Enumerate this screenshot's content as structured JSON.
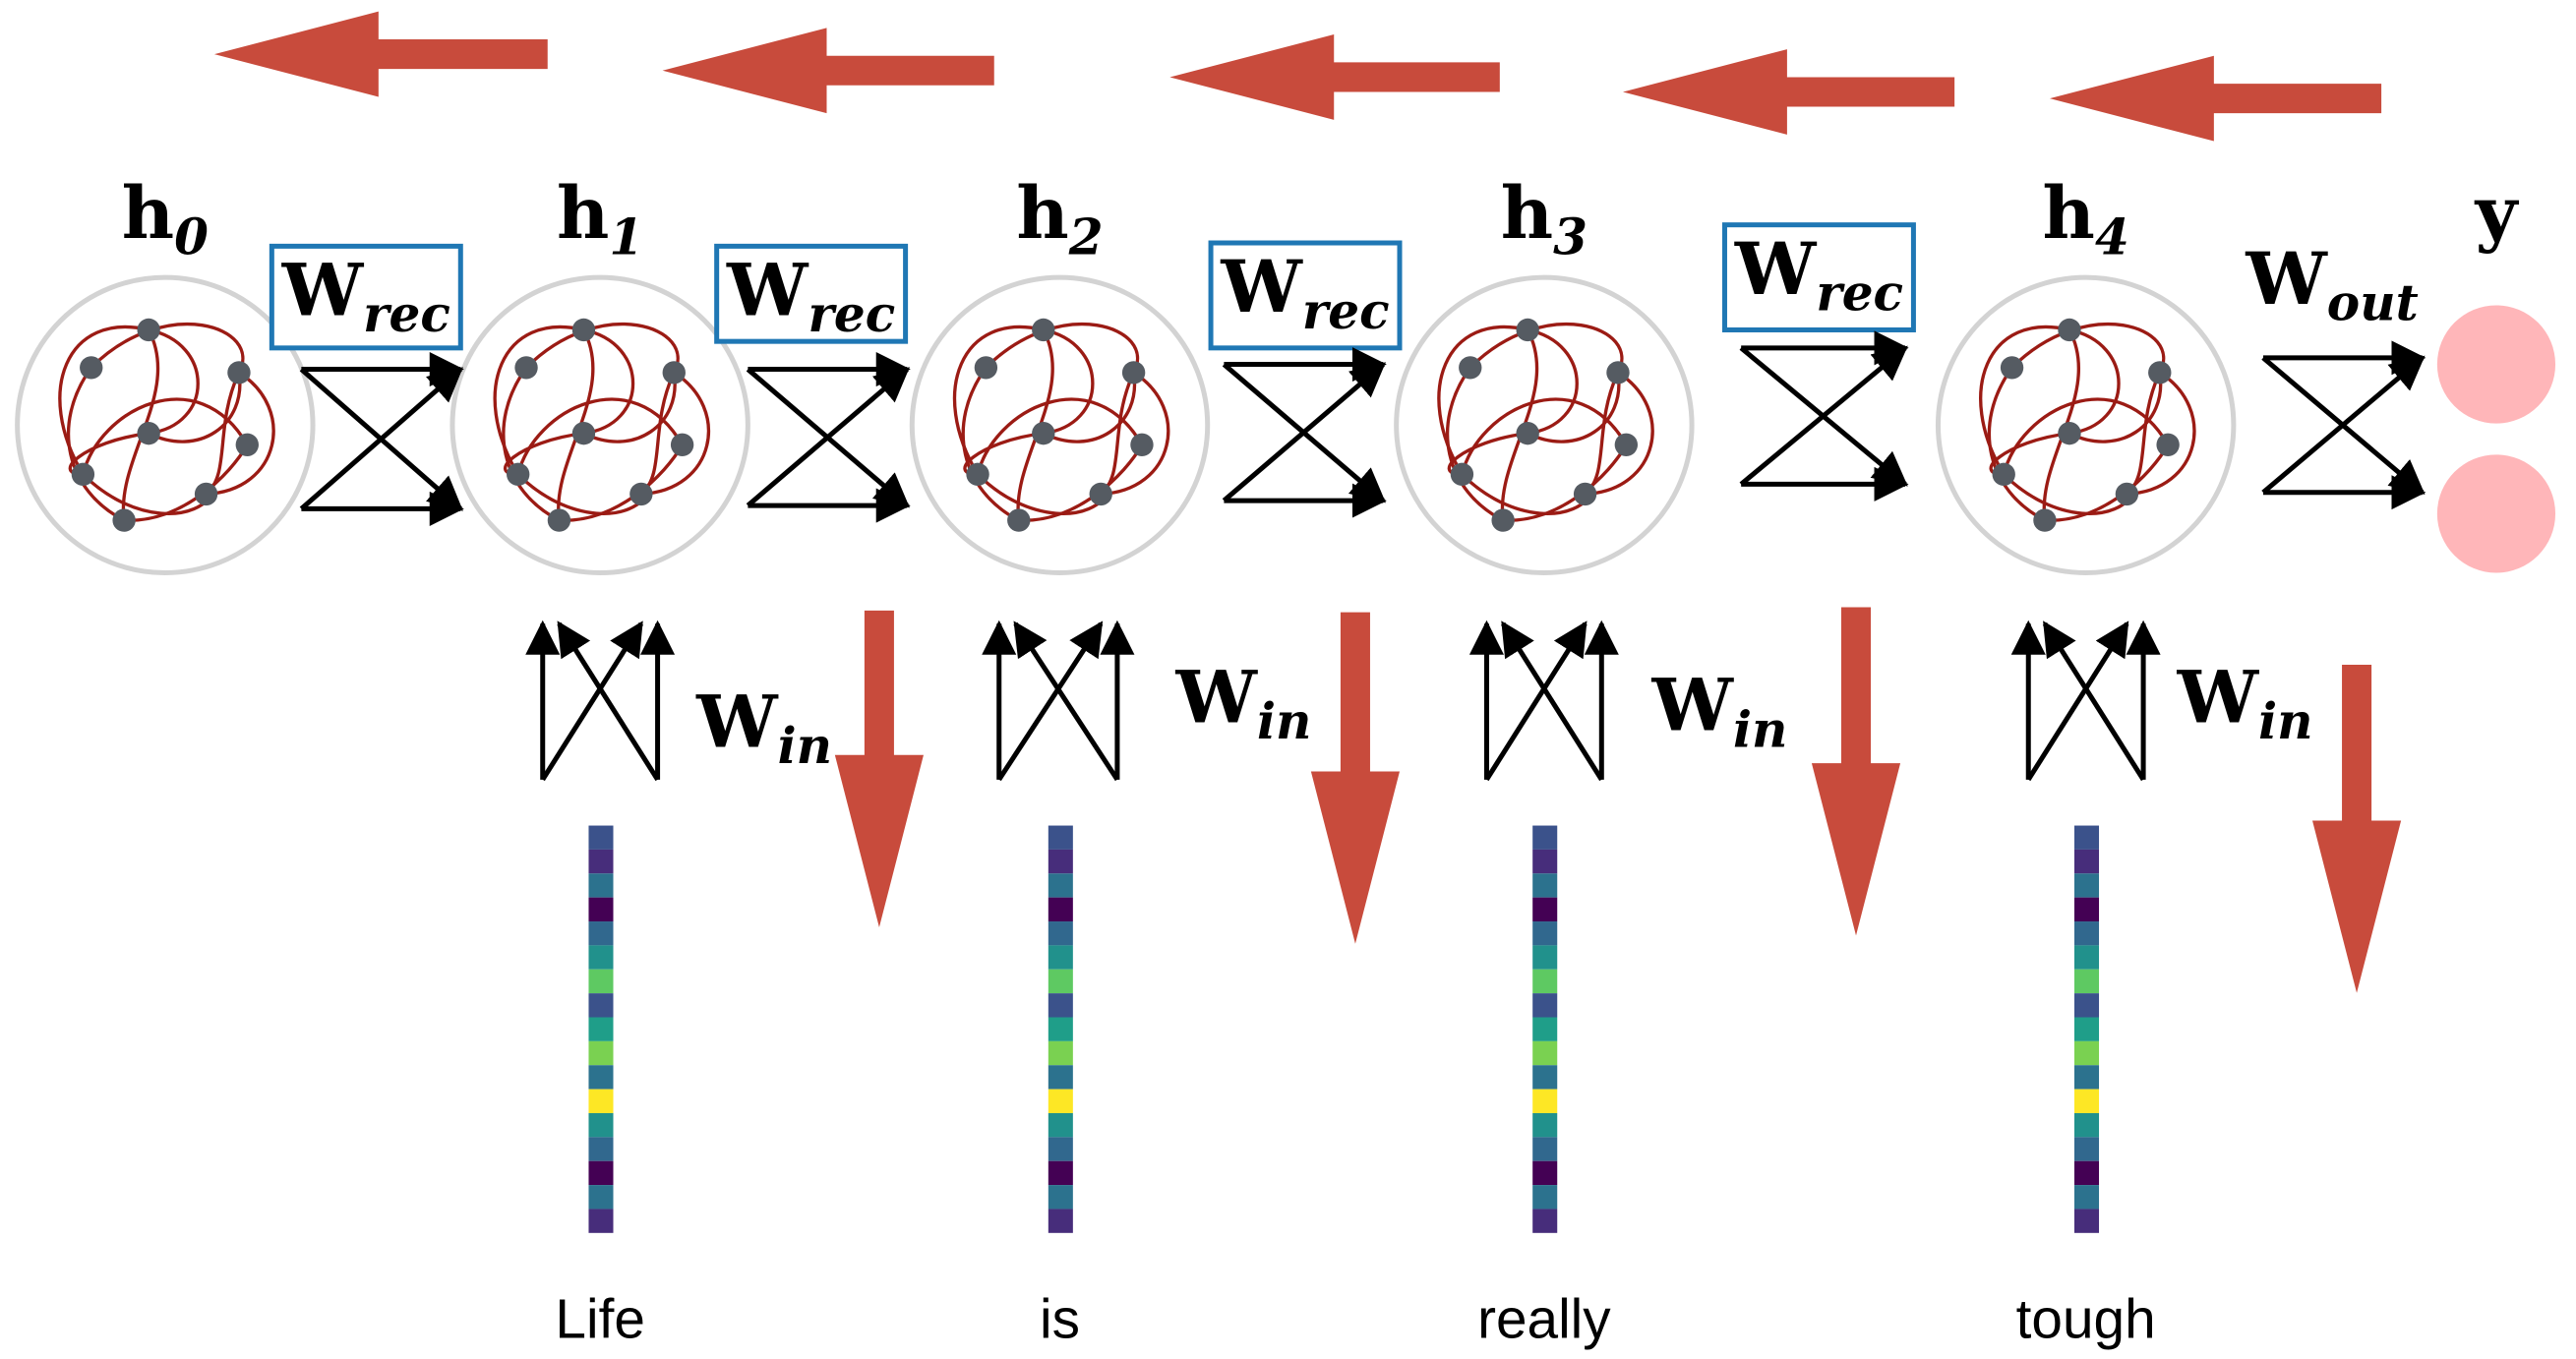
{
  "hidden_states": [
    {
      "symbol": "h",
      "subscript": "0"
    },
    {
      "symbol": "h",
      "subscript": "1"
    },
    {
      "symbol": "h",
      "subscript": "2"
    },
    {
      "symbol": "h",
      "subscript": "3"
    },
    {
      "symbol": "h",
      "subscript": "4"
    }
  ],
  "output": {
    "symbol": "y"
  },
  "recurrent_weights": [
    {
      "symbol": "W",
      "subscript": "rec"
    },
    {
      "symbol": "W",
      "subscript": "rec"
    },
    {
      "symbol": "W",
      "subscript": "rec"
    },
    {
      "symbol": "W",
      "subscript": "rec"
    }
  ],
  "output_weight": {
    "symbol": "W",
    "subscript": "out"
  },
  "input_weights": [
    {
      "symbol": "W",
      "subscript": "in"
    },
    {
      "symbol": "W",
      "subscript": "in"
    },
    {
      "symbol": "W",
      "subscript": "in"
    },
    {
      "symbol": "W",
      "subscript": "in"
    }
  ],
  "words": [
    "Life",
    "is",
    "really",
    "tough"
  ]
}
